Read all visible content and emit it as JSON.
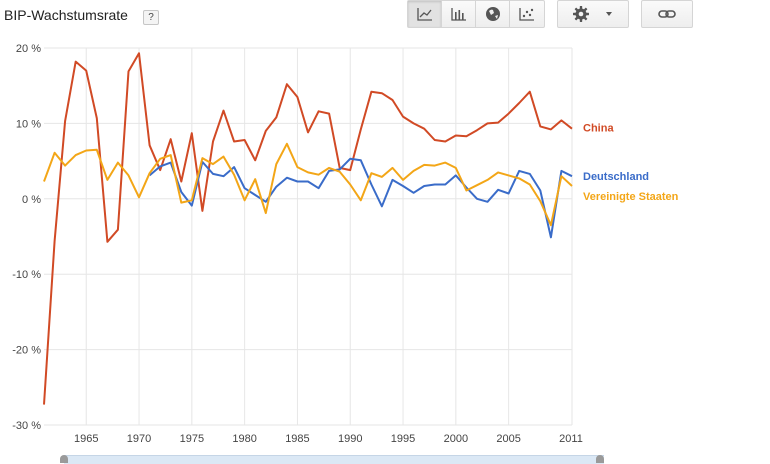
{
  "header": {
    "title": "BIP-Wachstumsrate",
    "help_label": "?"
  },
  "toolbar": {
    "chart_types": [
      {
        "name": "line-chart",
        "active": true
      },
      {
        "name": "bar-chart",
        "active": false
      },
      {
        "name": "map",
        "active": false
      },
      {
        "name": "scatter",
        "active": false
      }
    ],
    "settings_icon": "gear-icon",
    "dropdown_icon": "chevron-down-icon",
    "link_icon": "link-icon"
  },
  "colors": {
    "China": "#d14a25",
    "Deutschland": "#3a6cc9",
    "Vereinigte Staaten": "#f3a617",
    "grid": "#e6e6e6"
  },
  "chart_data": {
    "type": "line",
    "title": "BIP-Wachstumsrate",
    "xlabel": "",
    "ylabel": "",
    "xlim": [
      1961,
      2011
    ],
    "ylim": [
      -30,
      20
    ],
    "y_ticks": [
      20,
      10,
      0,
      -10,
      -20,
      -30
    ],
    "y_tick_labels": [
      "20 %",
      "10 %",
      "0 %",
      "-10 %",
      "-20 %",
      "-30 %"
    ],
    "x_ticks": [
      1965,
      1970,
      1975,
      1980,
      1985,
      1990,
      1995,
      2000,
      2005,
      2011
    ],
    "x_tick_labels": [
      "1965",
      "1970",
      "1975",
      "1980",
      "1985",
      "1990",
      "1995",
      "2000",
      "2005",
      "2011"
    ],
    "grid": true,
    "legend": "labels at line ends, right",
    "series": [
      {
        "name": "China",
        "x": [
          1961,
          1962,
          1963,
          1964,
          1965,
          1966,
          1967,
          1968,
          1969,
          1970,
          1971,
          1972,
          1973,
          1974,
          1975,
          1976,
          1977,
          1978,
          1979,
          1980,
          1981,
          1982,
          1983,
          1984,
          1985,
          1986,
          1987,
          1988,
          1989,
          1990,
          1991,
          1992,
          1993,
          1994,
          1995,
          1996,
          1997,
          1998,
          1999,
          2000,
          2001,
          2002,
          2003,
          2004,
          2005,
          2006,
          2007,
          2008,
          2009,
          2010,
          2011
        ],
        "values": [
          -27.3,
          -5.6,
          10.3,
          18.2,
          17.0,
          10.7,
          -5.7,
          -4.1,
          16.9,
          19.3,
          7.1,
          3.8,
          7.9,
          2.3,
          8.7,
          -1.6,
          7.6,
          11.7,
          7.6,
          7.8,
          5.1,
          9.0,
          10.8,
          15.2,
          13.5,
          8.8,
          11.6,
          11.3,
          4.1,
          3.8,
          9.2,
          14.2,
          14.0,
          13.1,
          10.9,
          10.0,
          9.3,
          7.8,
          7.6,
          8.4,
          8.3,
          9.1,
          10.0,
          10.1,
          11.3,
          12.7,
          14.2,
          9.6,
          9.2,
          10.4,
          9.3
        ]
      },
      {
        "name": "Deutschland",
        "x": [
          1971,
          1972,
          1973,
          1974,
          1975,
          1976,
          1977,
          1978,
          1979,
          1980,
          1981,
          1982,
          1983,
          1984,
          1985,
          1986,
          1987,
          1988,
          1989,
          1990,
          1991,
          1992,
          1993,
          1994,
          1995,
          1996,
          1997,
          1998,
          1999,
          2000,
          2001,
          2002,
          2003,
          2004,
          2005,
          2006,
          2007,
          2008,
          2009,
          2010,
          2011
        ],
        "values": [
          3.1,
          4.3,
          4.8,
          0.9,
          -0.9,
          4.9,
          3.3,
          3.0,
          4.2,
          1.4,
          0.5,
          -0.4,
          1.6,
          2.8,
          2.3,
          2.3,
          1.4,
          3.7,
          3.9,
          5.3,
          5.1,
          1.9,
          -1.0,
          2.5,
          1.7,
          0.8,
          1.7,
          1.9,
          1.9,
          3.1,
          1.5,
          0.0,
          -0.4,
          1.2,
          0.7,
          3.7,
          3.3,
          1.1,
          -5.1,
          3.7,
          3.0
        ]
      },
      {
        "name": "Vereinigte Staaten",
        "x": [
          1961,
          1962,
          1963,
          1964,
          1965,
          1966,
          1967,
          1968,
          1969,
          1970,
          1971,
          1972,
          1973,
          1974,
          1975,
          1976,
          1977,
          1978,
          1979,
          1980,
          1981,
          1982,
          1983,
          1984,
          1985,
          1986,
          1987,
          1988,
          1989,
          1990,
          1991,
          1992,
          1993,
          1994,
          1995,
          1996,
          1997,
          1998,
          1999,
          2000,
          2001,
          2002,
          2003,
          2004,
          2005,
          2006,
          2007,
          2008,
          2009,
          2010,
          2011
        ],
        "values": [
          2.3,
          6.1,
          4.4,
          5.8,
          6.4,
          6.5,
          2.5,
          4.8,
          3.1,
          0.2,
          3.4,
          5.3,
          5.8,
          -0.5,
          -0.2,
          5.4,
          4.6,
          5.6,
          3.2,
          -0.2,
          2.6,
          -1.9,
          4.6,
          7.3,
          4.2,
          3.5,
          3.2,
          4.1,
          3.6,
          1.9,
          -0.2,
          3.4,
          2.9,
          4.1,
          2.5,
          3.7,
          4.5,
          4.4,
          4.8,
          4.1,
          1.1,
          1.8,
          2.5,
          3.5,
          3.1,
          2.7,
          1.9,
          -0.3,
          -3.5,
          3.0,
          1.7
        ]
      }
    ]
  }
}
